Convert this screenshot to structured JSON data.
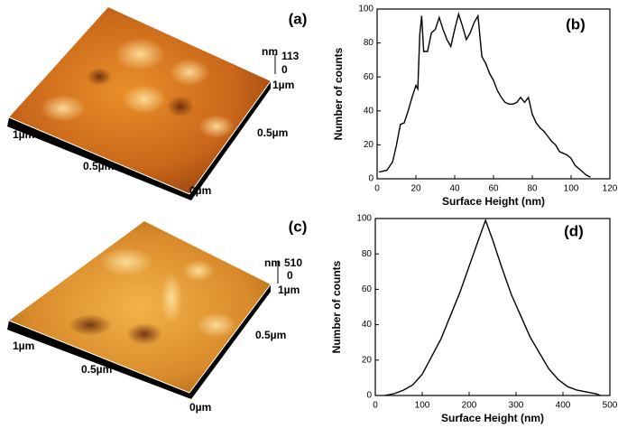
{
  "afm_panels": [
    {
      "label": "(a)",
      "unit": "nm",
      "max": "113",
      "min": "0",
      "scale_labels": [
        "1µm",
        "1µm",
        "0.5µm",
        "0.5µm",
        "0µm"
      ]
    },
    {
      "label": "(c)",
      "unit": "nm",
      "max": "510",
      "min": "0",
      "scale_labels": [
        "1µm",
        "1µm",
        "0.5µm",
        "0.5µm",
        "0µm"
      ]
    }
  ],
  "chart_data": [
    {
      "type": "line",
      "panel_label": "(b)",
      "x_label": "Surface Height (nm)",
      "y_label": "Number of counts",
      "color": "#000000",
      "x": [
        1,
        5,
        8,
        10,
        12,
        14,
        16,
        18,
        20,
        21,
        22,
        23,
        24,
        26,
        28,
        30,
        32,
        34,
        36,
        38,
        40,
        42,
        44,
        46,
        48,
        50,
        52,
        54,
        56,
        58,
        60,
        62,
        64,
        66,
        68,
        70,
        72,
        74,
        76,
        78,
        80,
        82,
        84,
        86,
        88,
        90,
        92,
        94,
        96,
        98,
        100,
        102,
        104,
        106,
        108,
        110
      ],
      "values": [
        4,
        5,
        10,
        20,
        32,
        33,
        40,
        48,
        55,
        53,
        85,
        96,
        75,
        75,
        86,
        88,
        95,
        88,
        82,
        78,
        88,
        97,
        90,
        82,
        86,
        92,
        96,
        72,
        68,
        62,
        58,
        52,
        48,
        45,
        44,
        44,
        45,
        48,
        45,
        48,
        38,
        33,
        30,
        28,
        25,
        22,
        20,
        16,
        15,
        14,
        12,
        8,
        6,
        4,
        2,
        1
      ],
      "xlim": [
        0,
        120
      ],
      "xticks": [
        0,
        20,
        40,
        60,
        80,
        100,
        120
      ],
      "ylim": [
        0,
        100
      ],
      "yticks": [
        0,
        20,
        40,
        60,
        80,
        100
      ]
    },
    {
      "type": "line",
      "panel_label": "(d)",
      "x_label": "Surface Height (nm)",
      "y_label": "Number of counts",
      "color": "#000000",
      "x": [
        20,
        40,
        60,
        80,
        100,
        120,
        140,
        160,
        180,
        200,
        220,
        235,
        250,
        270,
        290,
        310,
        330,
        350,
        370,
        390,
        410,
        430,
        450,
        470,
        480
      ],
      "values": [
        0,
        1,
        3,
        6,
        12,
        22,
        32,
        45,
        58,
        73,
        88,
        99,
        88,
        72,
        57,
        45,
        33,
        24,
        15,
        9,
        5,
        3,
        2,
        1,
        0
      ],
      "xlim": [
        0,
        500
      ],
      "xticks": [
        0,
        100,
        200,
        300,
        400,
        500
      ],
      "ylim": [
        0,
        100
      ],
      "yticks": [
        0,
        20,
        40,
        60,
        80,
        100
      ]
    }
  ]
}
